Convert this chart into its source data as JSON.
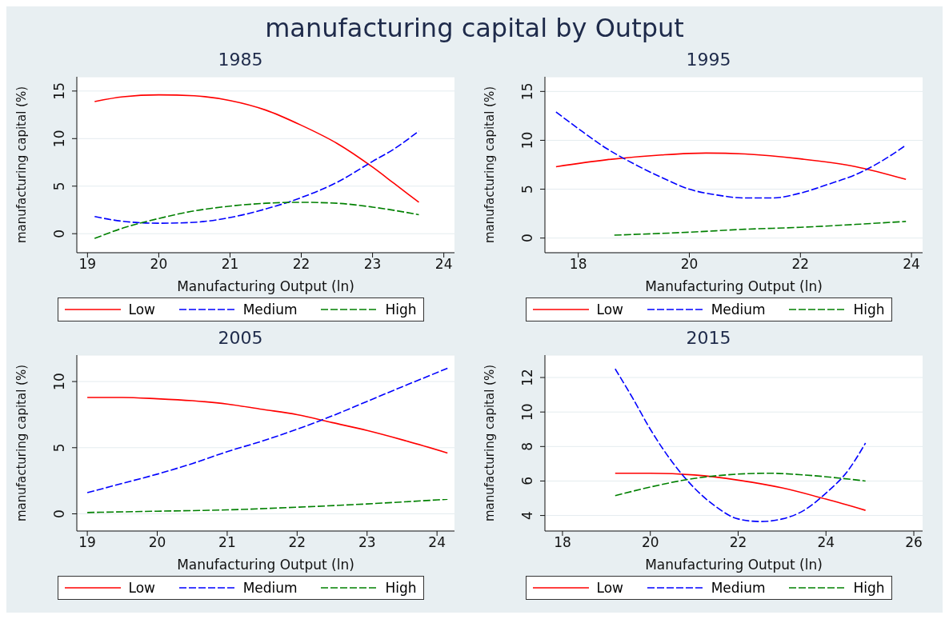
{
  "chart_data": [
    {
      "type": "line",
      "title": "1985",
      "annotations": [
        "manufacturing capital by Output"
      ],
      "xlabel": "Manufacturing Output (ln)",
      "ylabel": "manufacturing capital (%)",
      "xlim": [
        18.85,
        24.15
      ],
      "xticks": [
        19,
        20,
        21,
        22,
        23,
        24
      ],
      "ylim": [
        -2,
        16.5
      ],
      "yticks": [
        0,
        5,
        10,
        15
      ],
      "grid": "y",
      "legend": "bottom",
      "marker": "none",
      "series": [
        {
          "name": "Low",
          "color": "#ff0000",
          "line_style": "solid",
          "x": [
            19.1,
            19.5,
            20,
            20.5,
            21,
            21.5,
            22,
            22.5,
            23,
            23.3,
            23.65
          ],
          "values": [
            13.9,
            14.4,
            14.6,
            14.5,
            14.0,
            13.0,
            11.4,
            9.5,
            7.0,
            5.3,
            3.3
          ]
        },
        {
          "name": "Medium",
          "color": "#0000ff",
          "line_style": "dashed",
          "x": [
            19.1,
            19.5,
            20,
            20.5,
            21,
            21.5,
            22,
            22.5,
            23,
            23.3,
            23.65
          ],
          "values": [
            1.8,
            1.3,
            1.1,
            1.2,
            1.7,
            2.6,
            3.8,
            5.4,
            7.6,
            8.9,
            10.8
          ]
        },
        {
          "name": "High",
          "color": "#008000",
          "line_style": "dashed",
          "x": [
            19.1,
            19.5,
            20,
            20.5,
            21,
            21.5,
            22,
            22.5,
            23,
            23.65
          ],
          "values": [
            -0.5,
            0.6,
            1.6,
            2.4,
            2.9,
            3.2,
            3.3,
            3.2,
            2.8,
            2.0
          ]
        }
      ]
    },
    {
      "type": "line",
      "title": "1995",
      "xlabel": "Manufacturing Output (ln)",
      "ylabel": "manufacturing capital (%)",
      "xlim": [
        17.4,
        24.2
      ],
      "xticks": [
        18,
        20,
        22,
        24
      ],
      "ylim": [
        -1.5,
        16.5
      ],
      "yticks": [
        0,
        5,
        10,
        15
      ],
      "grid": "y",
      "legend": "bottom",
      "marker": "none",
      "series": [
        {
          "name": "Low",
          "color": "#ff0000",
          "line_style": "solid",
          "x": [
            17.6,
            18.5,
            19.5,
            20.3,
            21,
            22,
            23,
            23.9
          ],
          "values": [
            7.3,
            8.0,
            8.5,
            8.7,
            8.6,
            8.1,
            7.3,
            6.0
          ]
        },
        {
          "name": "Medium",
          "color": "#0000ff",
          "line_style": "dashed",
          "x": [
            17.6,
            18,
            18.5,
            19,
            19.5,
            20,
            20.5,
            21,
            21.5,
            22,
            22.5,
            23,
            23.5,
            23.9
          ],
          "values": [
            12.9,
            11.2,
            9.2,
            7.6,
            6.2,
            5.0,
            4.4,
            4.1,
            4.1,
            4.6,
            5.5,
            6.5,
            8.0,
            9.5
          ]
        },
        {
          "name": "High",
          "color": "#008000",
          "line_style": "dashed",
          "x": [
            18.65,
            20,
            21,
            22,
            23,
            23.9
          ],
          "values": [
            0.3,
            0.6,
            0.9,
            1.1,
            1.4,
            1.7
          ]
        }
      ]
    },
    {
      "type": "line",
      "title": "2005",
      "xlabel": "Manufacturing Output (ln)",
      "ylabel": "manufacturing capital (%)",
      "xlim": [
        18.85,
        24.25
      ],
      "xticks": [
        19,
        20,
        21,
        22,
        23,
        24
      ],
      "ylim": [
        -1.3,
        12
      ],
      "yticks": [
        0,
        5,
        10
      ],
      "grid": "y",
      "legend": "bottom",
      "marker": "none",
      "series": [
        {
          "name": "Low",
          "color": "#ff0000",
          "line_style": "solid",
          "x": [
            19,
            19.5,
            20,
            20.5,
            21,
            21.5,
            22,
            22.5,
            23,
            23.5,
            24.15
          ],
          "values": [
            8.8,
            8.8,
            8.7,
            8.55,
            8.3,
            7.9,
            7.5,
            6.9,
            6.3,
            5.6,
            4.6
          ]
        },
        {
          "name": "Medium",
          "color": "#0000ff",
          "line_style": "dashed",
          "x": [
            19,
            19.5,
            20,
            20.5,
            21,
            21.5,
            22,
            22.5,
            23,
            23.5,
            24.15
          ],
          "values": [
            1.6,
            2.3,
            3.0,
            3.8,
            4.7,
            5.5,
            6.4,
            7.4,
            8.5,
            9.6,
            11.0
          ]
        },
        {
          "name": "High",
          "color": "#008000",
          "line_style": "dashed",
          "x": [
            19,
            20,
            21,
            22,
            23,
            24.15
          ],
          "values": [
            0.1,
            0.2,
            0.3,
            0.5,
            0.75,
            1.1
          ]
        }
      ]
    },
    {
      "type": "line",
      "title": "2015",
      "xlabel": "Manufacturing Output (ln)",
      "ylabel": "manufacturing capital (%)",
      "xlim": [
        17.6,
        26.2
      ],
      "xticks": [
        18,
        20,
        22,
        24,
        26
      ],
      "ylim": [
        3.1,
        13.3
      ],
      "yticks": [
        4,
        6,
        8,
        10,
        12
      ],
      "grid": "y",
      "legend": "bottom",
      "marker": "none",
      "series": [
        {
          "name": "Low",
          "color": "#ff0000",
          "line_style": "solid",
          "x": [
            19.2,
            20,
            21,
            22,
            23,
            24,
            24.9
          ],
          "values": [
            6.45,
            6.45,
            6.35,
            6.05,
            5.6,
            4.95,
            4.3
          ]
        },
        {
          "name": "Medium",
          "color": "#0000ff",
          "line_style": "dashed",
          "x": [
            19.2,
            19.6,
            20,
            20.5,
            21,
            21.5,
            22,
            22.5,
            23,
            23.5,
            24,
            24.5,
            24.9
          ],
          "values": [
            12.5,
            10.8,
            9.0,
            7.1,
            5.6,
            4.5,
            3.8,
            3.65,
            3.8,
            4.3,
            5.3,
            6.6,
            8.2
          ]
        },
        {
          "name": "High",
          "color": "#008000",
          "line_style": "dashed",
          "x": [
            19.2,
            20,
            21,
            22,
            22.7,
            23.5,
            24.9
          ],
          "values": [
            5.15,
            5.65,
            6.15,
            6.4,
            6.45,
            6.35,
            6.0
          ]
        }
      ]
    }
  ]
}
